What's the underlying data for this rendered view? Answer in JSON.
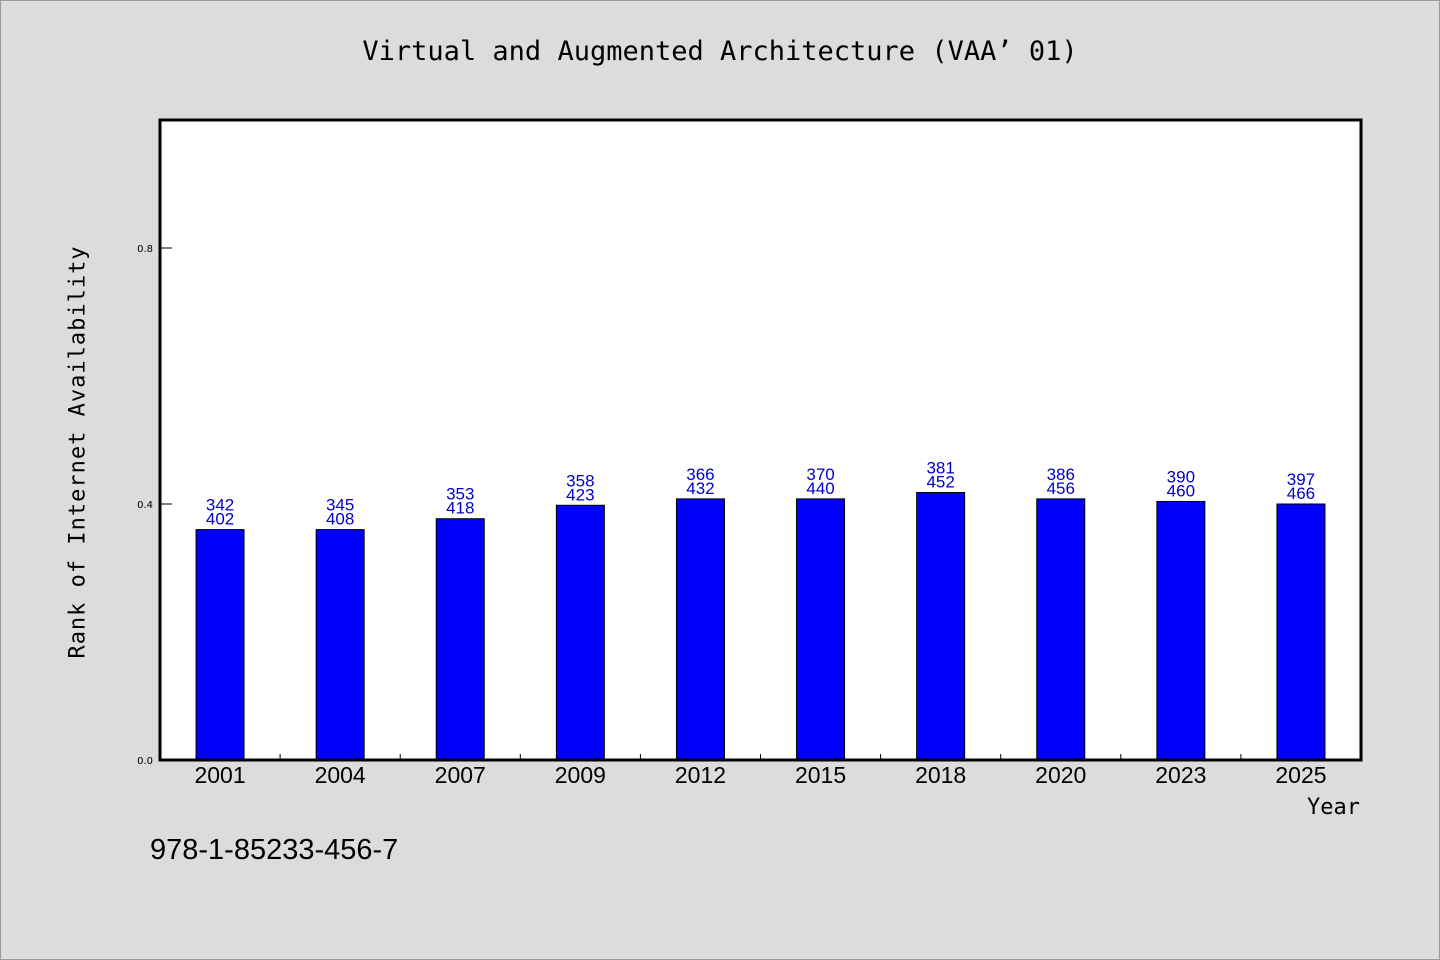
{
  "chart_data": {
    "type": "bar",
    "title": "Virtual and Augmented Architecture (VAA’ 01)",
    "xlabel": "Year",
    "ylabel": "Rank of Internet Availability",
    "ylim": [
      0,
      1.0
    ],
    "yticks": [
      "0.0",
      "0.4",
      "0.8"
    ],
    "grid": false,
    "categories": [
      "2001",
      "2004",
      "2007",
      "2009",
      "2012",
      "2015",
      "2018",
      "2020",
      "2023",
      "2025"
    ],
    "values": [
      0.36,
      0.36,
      0.377,
      0.398,
      0.408,
      0.408,
      0.418,
      0.408,
      0.404,
      0.4
    ],
    "labels_top": [
      "342",
      "345",
      "353",
      "358",
      "366",
      "370",
      "381",
      "386",
      "390",
      "397"
    ],
    "labels_bottom": [
      "402",
      "408",
      "418",
      "423",
      "432",
      "440",
      "452",
      "456",
      "460",
      "466"
    ],
    "bar_color": "#0000ff",
    "label_color": "#0000cc"
  },
  "footer": {
    "isbn": "978-1-85233-456-7"
  }
}
